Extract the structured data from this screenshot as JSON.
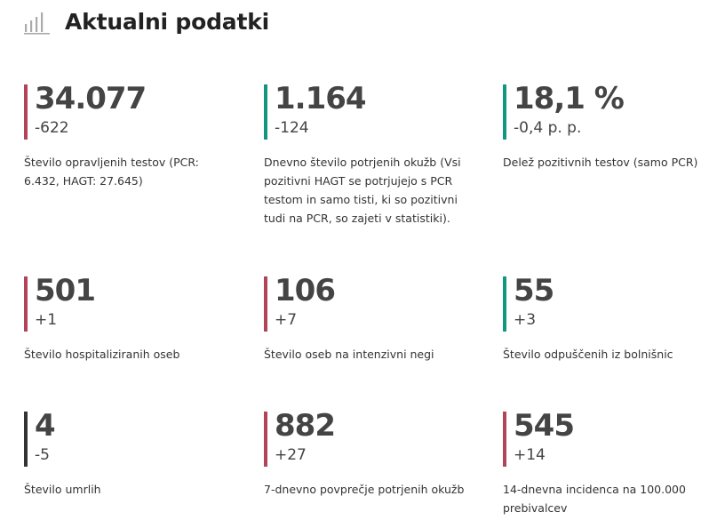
{
  "header": {
    "title": "Aktualni podatki",
    "icon": "bar-chart-icon"
  },
  "colors": {
    "red": "#b24458",
    "teal": "#129680",
    "dark": "#333333"
  },
  "stats": [
    {
      "value": "34.077",
      "delta": "-622",
      "label": "Število opravljenih testov (PCR: 6.432, HAGT: 27.645)",
      "color": "red"
    },
    {
      "value": "1.164",
      "delta": "-124",
      "label": "Dnevno število potrjenih okužb (Vsi pozitivni HAGT se potrjujejo s PCR testom in samo tisti, ki so pozitivni tudi na PCR, so zajeti v statistiki).",
      "color": "teal"
    },
    {
      "value": "18,1 %",
      "delta": "-0,4 p. p.",
      "label": "Delež pozitivnih testov (samo PCR)",
      "color": "teal"
    },
    {
      "value": "501",
      "delta": "+1",
      "label": "Število hospitaliziranih oseb",
      "color": "red"
    },
    {
      "value": "106",
      "delta": "+7",
      "label": "Število oseb na intenzivni negi",
      "color": "red"
    },
    {
      "value": "55",
      "delta": "+3",
      "label": "Število odpuščenih iz bolnišnic",
      "color": "teal"
    },
    {
      "value": "4",
      "delta": "-5",
      "label": "Število umrlih",
      "color": "dark"
    },
    {
      "value": "882",
      "delta": "+27",
      "label": "7-dnevno povprečje potrjenih okužb",
      "color": "red"
    },
    {
      "value": "545",
      "delta": "+14",
      "label": "14-dnevna incidenca na 100.000 prebivalcev",
      "color": "red"
    }
  ]
}
